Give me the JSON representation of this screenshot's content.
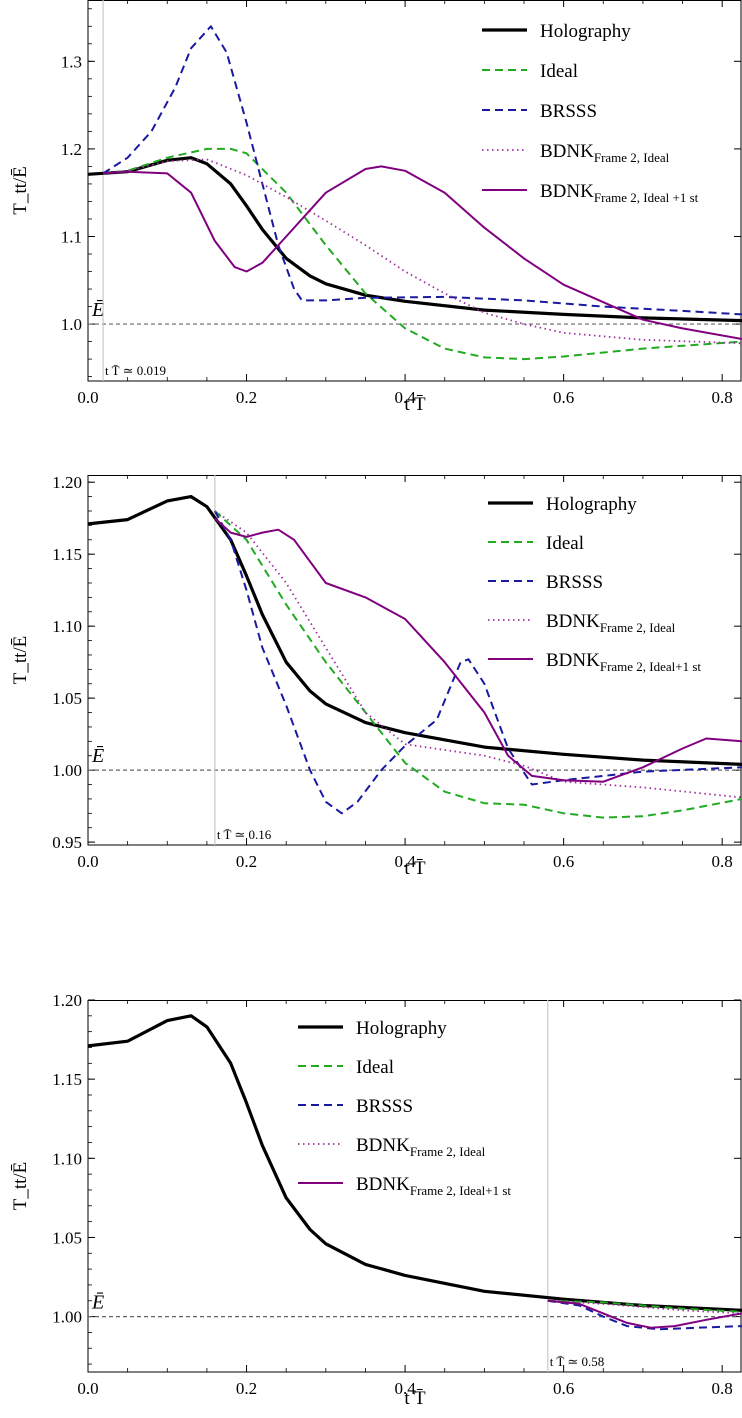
{
  "chart_data": [
    {
      "type": "line",
      "xlabel": "t T̄",
      "ylabel": "T_tt/Ē",
      "xlim": [
        0,
        0.825
      ],
      "ylim": [
        0.935,
        1.37
      ],
      "x_ticks": [
        0.0,
        0.2,
        0.4,
        0.6,
        0.8
      ],
      "x_tick_labels": [
        "0.0",
        "0.2",
        "0.4",
        "0.6",
        "0.8"
      ],
      "y_ticks": [
        1.0,
        1.1,
        1.2,
        1.3
      ],
      "y_tick_labels": [
        "1.0",
        "1.1",
        "1.2",
        "1.3"
      ],
      "reference_line": {
        "y": 1.0,
        "label": "Ē"
      },
      "marker": {
        "x": 0.019,
        "label": "t T̄ ≃ 0.019"
      },
      "legend_position": "top-right",
      "series": [
        {
          "name": "Holography",
          "style": "solid-thick",
          "color": "#000000",
          "points": [
            [
              0,
              1.171
            ],
            [
              0.05,
              1.174
            ],
            [
              0.1,
              1.187
            ],
            [
              0.13,
              1.19
            ],
            [
              0.15,
              1.183
            ],
            [
              0.18,
              1.16
            ],
            [
              0.2,
              1.135
            ],
            [
              0.22,
              1.108
            ],
            [
              0.25,
              1.075
            ],
            [
              0.28,
              1.055
            ],
            [
              0.3,
              1.046
            ],
            [
              0.35,
              1.033
            ],
            [
              0.4,
              1.026
            ],
            [
              0.5,
              1.016
            ],
            [
              0.6,
              1.011
            ],
            [
              0.7,
              1.007
            ],
            [
              0.825,
              1.004
            ]
          ]
        },
        {
          "name": "Ideal",
          "style": "dashed",
          "color": "#22aa22",
          "points": [
            [
              0.019,
              1.172
            ],
            [
              0.05,
              1.175
            ],
            [
              0.1,
              1.19
            ],
            [
              0.15,
              1.2
            ],
            [
              0.18,
              1.2
            ],
            [
              0.2,
              1.195
            ],
            [
              0.25,
              1.15
            ],
            [
              0.3,
              1.09
            ],
            [
              0.35,
              1.035
            ],
            [
              0.4,
              0.995
            ],
            [
              0.45,
              0.972
            ],
            [
              0.5,
              0.962
            ],
            [
              0.55,
              0.96
            ],
            [
              0.6,
              0.963
            ],
            [
              0.7,
              0.972
            ],
            [
              0.825,
              0.98
            ]
          ]
        },
        {
          "name": "BRSSS",
          "style": "dashed",
          "color": "#1a1aa0",
          "points": [
            [
              0.019,
              1.172
            ],
            [
              0.05,
              1.19
            ],
            [
              0.08,
              1.22
            ],
            [
              0.11,
              1.27
            ],
            [
              0.13,
              1.315
            ],
            [
              0.155,
              1.34
            ],
            [
              0.175,
              1.31
            ],
            [
              0.2,
              1.23
            ],
            [
              0.22,
              1.16
            ],
            [
              0.24,
              1.09
            ],
            [
              0.26,
              1.04
            ],
            [
              0.27,
              1.027
            ],
            [
              0.3,
              1.027
            ],
            [
              0.35,
              1.03
            ],
            [
              0.45,
              1.031
            ],
            [
              0.55,
              1.027
            ],
            [
              0.65,
              1.02
            ],
            [
              0.75,
              1.015
            ],
            [
              0.825,
              1.011
            ]
          ]
        },
        {
          "name": "BDNK_{Frame 2, Ideal}",
          "style": "dotted",
          "color": "#a030a0",
          "points": [
            [
              0.019,
              1.172
            ],
            [
              0.05,
              1.175
            ],
            [
              0.1,
              1.186
            ],
            [
              0.15,
              1.188
            ],
            [
              0.2,
              1.17
            ],
            [
              0.25,
              1.145
            ],
            [
              0.3,
              1.118
            ],
            [
              0.35,
              1.09
            ],
            [
              0.4,
              1.06
            ],
            [
              0.45,
              1.035
            ],
            [
              0.5,
              1.013
            ],
            [
              0.55,
              1.0
            ],
            [
              0.6,
              0.99
            ],
            [
              0.7,
              0.982
            ],
            [
              0.825,
              0.978
            ]
          ]
        },
        {
          "name": "BDNK_{Frame 2, Ideal +1 st}",
          "style": "solid",
          "color": "#800080",
          "points": [
            [
              0.019,
              1.172
            ],
            [
              0.05,
              1.174
            ],
            [
              0.1,
              1.172
            ],
            [
              0.13,
              1.15
            ],
            [
              0.16,
              1.095
            ],
            [
              0.185,
              1.065
            ],
            [
              0.2,
              1.06
            ],
            [
              0.22,
              1.07
            ],
            [
              0.25,
              1.1
            ],
            [
              0.3,
              1.15
            ],
            [
              0.35,
              1.177
            ],
            [
              0.37,
              1.18
            ],
            [
              0.4,
              1.175
            ],
            [
              0.45,
              1.15
            ],
            [
              0.5,
              1.11
            ],
            [
              0.55,
              1.075
            ],
            [
              0.6,
              1.045
            ],
            [
              0.65,
              1.025
            ],
            [
              0.7,
              1.005
            ],
            [
              0.75,
              0.995
            ],
            [
              0.825,
              0.983
            ]
          ]
        }
      ]
    },
    {
      "type": "line",
      "xlabel": "t T̄",
      "ylabel": "T_tt/Ē",
      "xlim": [
        0,
        0.825
      ],
      "ylim": [
        0.948,
        1.205
      ],
      "x_ticks": [
        0.0,
        0.2,
        0.4,
        0.6,
        0.8
      ],
      "x_tick_labels": [
        "0.0",
        "0.2",
        "0.4",
        "0.6",
        "0.8"
      ],
      "y_ticks": [
        0.95,
        1.0,
        1.05,
        1.1,
        1.15,
        1.2
      ],
      "y_tick_labels": [
        "0.95",
        "1.00",
        "1.05",
        "1.10",
        "1.15",
        "1.20"
      ],
      "reference_line": {
        "y": 1.0,
        "label": "Ē"
      },
      "marker": {
        "x": 0.16,
        "label": "t T̄ ≃ 0.16"
      },
      "legend_position": "top-right",
      "series": [
        {
          "name": "Holography",
          "style": "solid-thick",
          "color": "#000000",
          "points": [
            [
              0,
              1.171
            ],
            [
              0.05,
              1.174
            ],
            [
              0.1,
              1.187
            ],
            [
              0.13,
              1.19
            ],
            [
              0.15,
              1.183
            ],
            [
              0.18,
              1.16
            ],
            [
              0.2,
              1.135
            ],
            [
              0.22,
              1.108
            ],
            [
              0.25,
              1.075
            ],
            [
              0.28,
              1.055
            ],
            [
              0.3,
              1.046
            ],
            [
              0.35,
              1.033
            ],
            [
              0.4,
              1.026
            ],
            [
              0.5,
              1.016
            ],
            [
              0.6,
              1.011
            ],
            [
              0.7,
              1.007
            ],
            [
              0.825,
              1.004
            ]
          ]
        },
        {
          "name": "Ideal",
          "style": "dashed",
          "color": "#22aa22",
          "points": [
            [
              0.16,
              1.18
            ],
            [
              0.2,
              1.16
            ],
            [
              0.25,
              1.115
            ],
            [
              0.3,
              1.075
            ],
            [
              0.35,
              1.04
            ],
            [
              0.4,
              1.005
            ],
            [
              0.45,
              0.985
            ],
            [
              0.5,
              0.977
            ],
            [
              0.55,
              0.976
            ],
            [
              0.6,
              0.97
            ],
            [
              0.65,
              0.967
            ],
            [
              0.7,
              0.968
            ],
            [
              0.75,
              0.972
            ],
            [
              0.825,
              0.98
            ]
          ]
        },
        {
          "name": "BRSSS",
          "style": "dashed",
          "color": "#1a1aa0",
          "points": [
            [
              0.16,
              1.18
            ],
            [
              0.18,
              1.16
            ],
            [
              0.2,
              1.125
            ],
            [
              0.22,
              1.085
            ],
            [
              0.25,
              1.045
            ],
            [
              0.28,
              1.0
            ],
            [
              0.3,
              0.978
            ],
            [
              0.32,
              0.97
            ],
            [
              0.34,
              0.978
            ],
            [
              0.37,
              1.0
            ],
            [
              0.4,
              1.017
            ],
            [
              0.44,
              1.035
            ],
            [
              0.47,
              1.075
            ],
            [
              0.48,
              1.077
            ],
            [
              0.5,
              1.06
            ],
            [
              0.53,
              1.015
            ],
            [
              0.56,
              0.99
            ],
            [
              0.6,
              0.993
            ],
            [
              0.7,
              0.999
            ],
            [
              0.825,
              1.002
            ]
          ]
        },
        {
          "name": "BDNK_{Frame 2, Ideal}",
          "style": "dotted",
          "color": "#a030a0",
          "points": [
            [
              0.16,
              1.18
            ],
            [
              0.2,
              1.165
            ],
            [
              0.25,
              1.13
            ],
            [
              0.3,
              1.085
            ],
            [
              0.35,
              1.04
            ],
            [
              0.4,
              1.018
            ],
            [
              0.5,
              1.01
            ],
            [
              0.55,
              1.003
            ],
            [
              0.6,
              0.992
            ],
            [
              0.7,
              0.988
            ],
            [
              0.825,
              0.981
            ]
          ]
        },
        {
          "name": "BDNK_{Frame 2, Ideal+1 st}",
          "style": "solid",
          "color": "#800080",
          "points": [
            [
              0.16,
              1.175
            ],
            [
              0.18,
              1.165
            ],
            [
              0.2,
              1.162
            ],
            [
              0.22,
              1.165
            ],
            [
              0.24,
              1.167
            ],
            [
              0.26,
              1.16
            ],
            [
              0.3,
              1.13
            ],
            [
              0.35,
              1.12
            ],
            [
              0.4,
              1.105
            ],
            [
              0.45,
              1.075
            ],
            [
              0.5,
              1.04
            ],
            [
              0.53,
              1.01
            ],
            [
              0.56,
              0.996
            ],
            [
              0.6,
              0.993
            ],
            [
              0.65,
              0.992
            ],
            [
              0.7,
              1.002
            ],
            [
              0.75,
              1.015
            ],
            [
              0.78,
              1.022
            ],
            [
              0.825,
              1.02
            ]
          ]
        }
      ]
    },
    {
      "type": "line",
      "xlabel": "t T̄",
      "ylabel": "T_tt/Ē",
      "xlim": [
        0,
        0.825
      ],
      "ylim": [
        0.965,
        1.2
      ],
      "x_ticks": [
        0.0,
        0.2,
        0.4,
        0.6,
        0.8
      ],
      "x_tick_labels": [
        "0.0",
        "0.2",
        "0.4",
        "0.6",
        "0.8"
      ],
      "y_ticks": [
        1.0,
        1.05,
        1.1,
        1.15,
        1.2
      ],
      "y_tick_labels": [
        "1.00",
        "1.05",
        "1.10",
        "1.15",
        "1.20"
      ],
      "reference_line": {
        "y": 1.0,
        "label": "Ē"
      },
      "marker": {
        "x": 0.58,
        "label": "t T̄ ≃ 0.58"
      },
      "legend_position": "top-center",
      "series": [
        {
          "name": "Holography",
          "style": "solid-thick",
          "color": "#000000",
          "points": [
            [
              0,
              1.171
            ],
            [
              0.05,
              1.174
            ],
            [
              0.1,
              1.187
            ],
            [
              0.13,
              1.19
            ],
            [
              0.15,
              1.183
            ],
            [
              0.18,
              1.16
            ],
            [
              0.2,
              1.135
            ],
            [
              0.22,
              1.108
            ],
            [
              0.25,
              1.075
            ],
            [
              0.28,
              1.055
            ],
            [
              0.3,
              1.046
            ],
            [
              0.35,
              1.033
            ],
            [
              0.4,
              1.026
            ],
            [
              0.5,
              1.016
            ],
            [
              0.6,
              1.011
            ],
            [
              0.7,
              1.007
            ],
            [
              0.825,
              1.004
            ]
          ]
        },
        {
          "name": "Ideal",
          "style": "dashed",
          "color": "#22aa22",
          "points": [
            [
              0.58,
              1.01
            ],
            [
              0.65,
              1.009
            ],
            [
              0.7,
              1.007
            ],
            [
              0.75,
              1.005
            ],
            [
              0.825,
              1.003
            ]
          ]
        },
        {
          "name": "BRSSS",
          "style": "dashed",
          "color": "#1a1aa0",
          "points": [
            [
              0.58,
              1.01
            ],
            [
              0.62,
              1.007
            ],
            [
              0.65,
              1.0
            ],
            [
              0.68,
              0.994
            ],
            [
              0.72,
              0.992
            ],
            [
              0.77,
              0.993
            ],
            [
              0.825,
              0.994
            ]
          ]
        },
        {
          "name": "BDNK_{Frame 2, Ideal}",
          "style": "dotted",
          "color": "#a030a0",
          "points": [
            [
              0.58,
              1.01
            ],
            [
              0.65,
              1.008
            ],
            [
              0.7,
              1.006
            ],
            [
              0.75,
              1.004
            ],
            [
              0.825,
              1.002
            ]
          ]
        },
        {
          "name": "BDNK_{Frame 2, Ideal+1 st}",
          "style": "solid",
          "color": "#800080",
          "points": [
            [
              0.58,
              1.01
            ],
            [
              0.62,
              1.008
            ],
            [
              0.65,
              1.002
            ],
            [
              0.68,
              0.996
            ],
            [
              0.71,
              0.993
            ],
            [
              0.74,
              0.994
            ],
            [
              0.78,
              0.998
            ],
            [
              0.825,
              1.002
            ]
          ]
        }
      ]
    }
  ]
}
